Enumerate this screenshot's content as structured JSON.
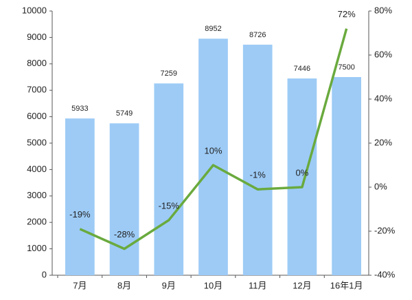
{
  "chart_data": {
    "type": "bar-line",
    "categories": [
      "7月",
      "8月",
      "9月",
      "10月",
      "11月",
      "12月",
      "16年1月"
    ],
    "series": [
      {
        "type": "bar",
        "color": "#9dcbf6",
        "values": [
          5933,
          5749,
          7259,
          8952,
          8726,
          7446,
          7500
        ]
      },
      {
        "type": "line",
        "axis": "y2",
        "color": "#6aaa3e",
        "values": [
          -19,
          -28,
          -15,
          10,
          -1,
          0,
          72
        ],
        "value_labels": [
          "-19%",
          "-28%",
          "-15%",
          "10%",
          "-1%",
          "0%",
          "72%"
        ]
      }
    ],
    "ylim": [
      0,
      10000
    ],
    "yticks": [
      0,
      1000,
      2000,
      3000,
      4000,
      5000,
      6000,
      7000,
      8000,
      9000,
      10000
    ],
    "y2lim": [
      -40,
      80
    ],
    "y2ticks": [
      {
        "value": -40,
        "label": "-40%"
      },
      {
        "value": -20,
        "label": "-20%"
      },
      {
        "value": 0,
        "label": "0%"
      },
      {
        "value": 20,
        "label": "20%"
      },
      {
        "value": 40,
        "label": "40%"
      },
      {
        "value": 60,
        "label": "60%"
      },
      {
        "value": 80,
        "label": "80%"
      }
    ]
  }
}
